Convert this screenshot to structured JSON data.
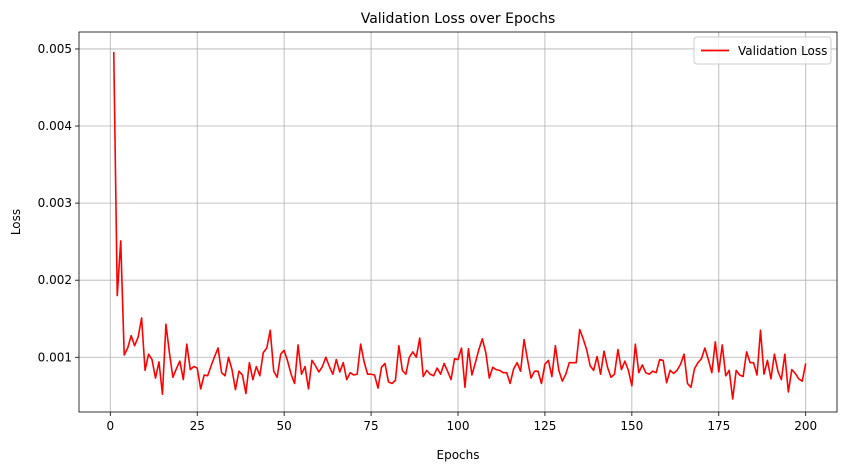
{
  "chart_data": {
    "type": "line",
    "title": "Validation Loss over Epochs",
    "xlabel": "Epochs",
    "ylabel": "Loss",
    "xlim": [
      -9,
      209
    ],
    "ylim": [
      0.00029,
      0.00522
    ],
    "xticks": [
      0,
      25,
      50,
      75,
      100,
      125,
      150,
      175,
      200
    ],
    "xtick_labels": [
      "0",
      "25",
      "50",
      "75",
      "100",
      "125",
      "150",
      "175",
      "200"
    ],
    "yticks": [
      0.001,
      0.002,
      0.003,
      0.004,
      0.005
    ],
    "ytick_labels": [
      "0.001",
      "0.002",
      "0.003",
      "0.004",
      "0.005"
    ],
    "grid": true,
    "legend_position": "top-right",
    "series": [
      {
        "name": "Validation Loss",
        "color": "#ff0000",
        "x": [
          1,
          2,
          3,
          4,
          5,
          6,
          7,
          8,
          9,
          10,
          11,
          12,
          13,
          14,
          15,
          16,
          17,
          18,
          19,
          20,
          21,
          22,
          23,
          24,
          25,
          26,
          27,
          28,
          29,
          30,
          31,
          32,
          33,
          34,
          35,
          36,
          37,
          38,
          39,
          40,
          41,
          42,
          43,
          44,
          45,
          46,
          47,
          48,
          49,
          50,
          51,
          52,
          53,
          54,
          55,
          56,
          57,
          58,
          59,
          60,
          61,
          62,
          63,
          64,
          65,
          66,
          67,
          68,
          69,
          70,
          71,
          72,
          73,
          74,
          75,
          76,
          77,
          78,
          79,
          80,
          81,
          82,
          83,
          84,
          85,
          86,
          87,
          88,
          89,
          90,
          91,
          92,
          93,
          94,
          95,
          96,
          97,
          98,
          99,
          100,
          101,
          102,
          103,
          104,
          105,
          106,
          107,
          108,
          109,
          110,
          111,
          112,
          113,
          114,
          115,
          116,
          117,
          118,
          119,
          120,
          121,
          122,
          123,
          124,
          125,
          126,
          127,
          128,
          129,
          130,
          131,
          132,
          133,
          134,
          135,
          136,
          137,
          138,
          139,
          140,
          141,
          142,
          143,
          144,
          145,
          146,
          147,
          148,
          149,
          150,
          151,
          152,
          153,
          154,
          155,
          156,
          157,
          158,
          159,
          160,
          161,
          162,
          163,
          164,
          165,
          166,
          167,
          168,
          169,
          170,
          171,
          172,
          173,
          174,
          175,
          176,
          177,
          178,
          179,
          180,
          181,
          182,
          183,
          184,
          185,
          186,
          187,
          188,
          189,
          190,
          191,
          192,
          193,
          194,
          195,
          196,
          197,
          198,
          199,
          200
        ],
        "y": [
          0.00496,
          0.0018,
          0.00251,
          0.00103,
          0.00112,
          0.00128,
          0.00115,
          0.00126,
          0.00151,
          0.00083,
          0.00104,
          0.00097,
          0.00073,
          0.00094,
          0.00052,
          0.00143,
          0.00106,
          0.00074,
          0.00085,
          0.00095,
          0.00071,
          0.00117,
          0.00084,
          0.00088,
          0.00086,
          0.00059,
          0.00077,
          0.00076,
          0.00089,
          0.00101,
          0.00112,
          0.0008,
          0.00076,
          0.001,
          0.00084,
          0.00058,
          0.00082,
          0.00077,
          0.00053,
          0.00093,
          0.00071,
          0.00088,
          0.00076,
          0.00106,
          0.00112,
          0.00135,
          0.00082,
          0.00074,
          0.00104,
          0.00109,
          0.00095,
          0.00078,
          0.00066,
          0.00116,
          0.00078,
          0.00088,
          0.00059,
          0.00096,
          0.00089,
          0.00081,
          0.00088,
          0.001,
          0.00088,
          0.00078,
          0.00097,
          0.00081,
          0.00093,
          0.00071,
          0.0008,
          0.00077,
          0.00078,
          0.00117,
          0.00094,
          0.00078,
          0.00078,
          0.00077,
          0.0006,
          0.00087,
          0.00092,
          0.00068,
          0.00066,
          0.0007,
          0.00115,
          0.00083,
          0.00078,
          0.001,
          0.00107,
          0.001,
          0.00125,
          0.00075,
          0.00083,
          0.00078,
          0.00076,
          0.00086,
          0.00078,
          0.00092,
          0.00082,
          0.00071,
          0.00098,
          0.00097,
          0.00112,
          0.00061,
          0.00111,
          0.00077,
          0.00093,
          0.0011,
          0.00124,
          0.00106,
          0.00073,
          0.00087,
          0.00084,
          0.00083,
          0.0008,
          0.0008,
          0.00066,
          0.00085,
          0.00093,
          0.00082,
          0.00123,
          0.00097,
          0.00073,
          0.00082,
          0.00082,
          0.00066,
          0.00091,
          0.00096,
          0.00075,
          0.00115,
          0.00083,
          0.00069,
          0.00078,
          0.00093,
          0.00093,
          0.00093,
          0.00136,
          0.00124,
          0.0011,
          0.00089,
          0.00083,
          0.00101,
          0.00078,
          0.00108,
          0.00087,
          0.00074,
          0.00078,
          0.0011,
          0.00084,
          0.00095,
          0.00083,
          0.00063,
          0.00117,
          0.0008,
          0.0009,
          0.0008,
          0.00078,
          0.00082,
          0.0008,
          0.00097,
          0.00096,
          0.00067,
          0.00083,
          0.00079,
          0.00083,
          0.00091,
          0.00104,
          0.00066,
          0.00061,
          0.00085,
          0.00093,
          0.00098,
          0.00112,
          0.00097,
          0.0008,
          0.0012,
          0.00081,
          0.00116,
          0.00076,
          0.00083,
          0.00046,
          0.00083,
          0.00077,
          0.00075,
          0.00107,
          0.00093,
          0.00093,
          0.00077,
          0.00135,
          0.00078,
          0.00096,
          0.00072,
          0.00104,
          0.00082,
          0.00071,
          0.00104,
          0.00055,
          0.00084,
          0.00079,
          0.00072,
          0.00069,
          0.00092
        ]
      }
    ]
  }
}
